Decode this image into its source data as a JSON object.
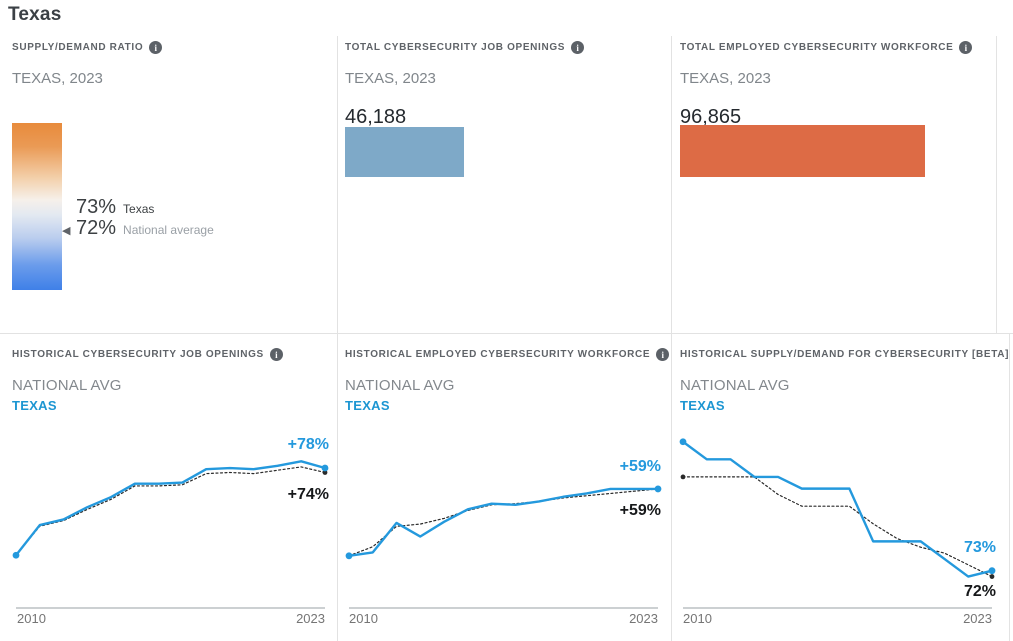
{
  "page": {
    "title": "Texas"
  },
  "panels": {
    "subtitle": "TEXAS, 2023",
    "ratio": {
      "title": "SUPPLY/DEMAND RATIO"
    },
    "openings": {
      "title": "TOTAL CYBERSECURITY JOB OPENINGS"
    },
    "workforce": {
      "title": "TOTAL EMPLOYED CYBERSECURITY WORKFORCE"
    },
    "hist_openings": {
      "title": "HISTORICAL CYBERSECURITY JOB OPENINGS"
    },
    "hist_workforce": {
      "title": "HISTORICAL EMPLOYED CYBERSECURITY WORKFORCE"
    },
    "hist_ratio": {
      "title": "HISTORICAL SUPPLY/DEMAND FOR CYBERSECURITY [BETA]"
    }
  },
  "chart_data": [
    {
      "type": "gauge",
      "title": "Supply/Demand Ratio",
      "region": "Texas, 2023",
      "unit": "%",
      "texas": 73,
      "national_average": 72,
      "display": {
        "texas_value": "73%",
        "texas_label": "Texas",
        "national_value": "72%",
        "national_label": "National average",
        "marker_glyph": "◀"
      },
      "gradient": {
        "top": "#e88b3c",
        "middle": "#f6f0ea",
        "bottom": "#3f80e8"
      }
    },
    {
      "type": "bar",
      "title": "Total Cybersecurity Job Openings",
      "region": "Texas, 2023",
      "categories": [
        "Texas"
      ],
      "values": [
        46188
      ],
      "display_value": "46,188",
      "bar_color": "#7ea9c8"
    },
    {
      "type": "bar",
      "title": "Total Employed Cybersecurity Workforce",
      "region": "Texas, 2023",
      "categories": [
        "Texas"
      ],
      "values": [
        96865
      ],
      "display_value": "96,865",
      "bar_color": "#dd6b45"
    },
    {
      "type": "line",
      "title": "Historical Cybersecurity Job Openings",
      "unit": "percent growth since 2010 (estimated from plot)",
      "x": [
        2010,
        2011,
        2012,
        2013,
        2014,
        2015,
        2016,
        2017,
        2018,
        2019,
        2020,
        2021,
        2022,
        2023
      ],
      "x_axis_labels": [
        "2010",
        "2023"
      ],
      "ylim": [
        -40,
        112
      ],
      "grid": false,
      "series": [
        {
          "name": "TEXAS",
          "color": "#2499dd",
          "style": "solid",
          "dots": [
            "start",
            "end"
          ],
          "values": [
            0,
            27,
            32,
            43,
            52,
            64,
            64,
            65,
            77,
            78,
            77,
            80,
            84,
            78
          ]
        },
        {
          "name": "NATIONAL AVG",
          "color": "#2a2a2a",
          "style": "dotted",
          "dots": [
            "end"
          ],
          "values": [
            0,
            26,
            31,
            41,
            50,
            62,
            62,
            63,
            73,
            74,
            73,
            76,
            79,
            74
          ]
        }
      ],
      "end_labels": [
        "+78%",
        "+74%"
      ]
    },
    {
      "type": "line",
      "title": "Historical Employed Cybersecurity Workforce",
      "unit": "percent growth since 2010 (estimated from plot)",
      "x": [
        2010,
        2011,
        2012,
        2013,
        2014,
        2015,
        2016,
        2017,
        2018,
        2019,
        2020,
        2021,
        2022,
        2023
      ],
      "x_axis_labels": [
        "2010",
        "2023"
      ],
      "ylim": [
        -39,
        111
      ],
      "grid": false,
      "series": [
        {
          "name": "TEXAS",
          "color": "#2499dd",
          "style": "solid",
          "dots": [
            "start",
            "end"
          ],
          "values": [
            0,
            3,
            29,
            17,
            30,
            41,
            46,
            45,
            48,
            52,
            55,
            59,
            59,
            59
          ]
        },
        {
          "name": "NATIONAL AVG",
          "color": "#2a2a2a",
          "style": "dotted",
          "dots": [
            "end"
          ],
          "values": [
            0,
            8,
            26,
            28,
            33,
            40,
            45,
            46,
            48,
            51,
            53,
            55,
            57,
            59
          ]
        }
      ],
      "end_labels": [
        "+59%",
        "+59%"
      ]
    },
    {
      "type": "line",
      "title": "Historical Supply/Demand for Cybersecurity [Beta]",
      "unit": "supply/demand ratio % (estimated from plot)",
      "x": [
        2010,
        2011,
        2012,
        2013,
        2014,
        2015,
        2016,
        2017,
        2018,
        2019,
        2020,
        2021,
        2022,
        2023
      ],
      "x_axis_labels": [
        "2010",
        "2023"
      ],
      "ylim": [
        68,
        97
      ],
      "grid": false,
      "series": [
        {
          "name": "TEXAS",
          "color": "#2499dd",
          "style": "solid",
          "dots": [
            "start",
            "end"
          ],
          "values": [
            95,
            92,
            92,
            89,
            89,
            87,
            87,
            87,
            78,
            78,
            78,
            75,
            72,
            73
          ]
        },
        {
          "name": "NATIONAL AVG",
          "color": "#2a2a2a",
          "style": "dotted",
          "dots": [
            "start",
            "end"
          ],
          "values": [
            89,
            89,
            89,
            89,
            86,
            84,
            84,
            84,
            81,
            78.5,
            77,
            76,
            74,
            72
          ]
        }
      ],
      "end_labels": [
        "73%",
        "72%"
      ]
    }
  ]
}
